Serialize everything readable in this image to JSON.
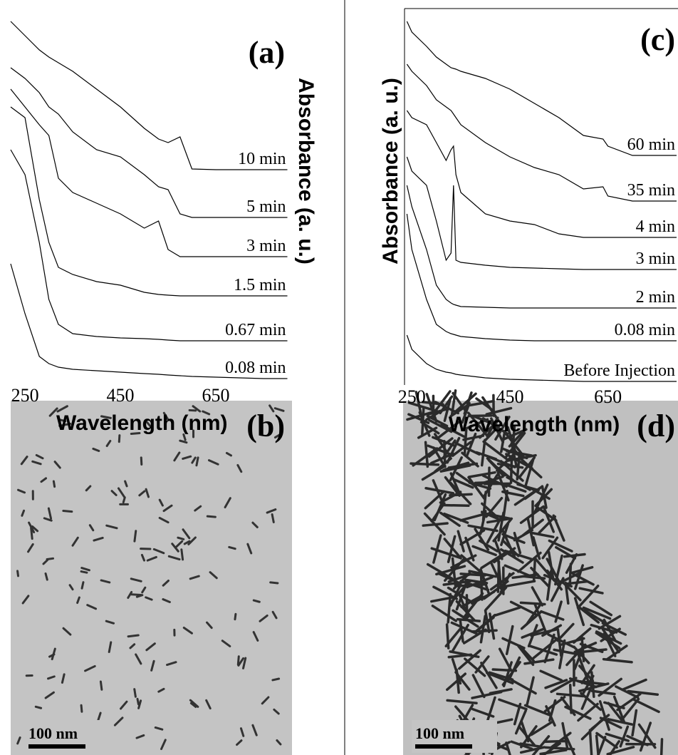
{
  "chart_data": [
    {
      "type": "line",
      "panel_label": "(a)",
      "x_label": "Wavelength (nm)",
      "y_label": "Absorbance (a. u.)",
      "x": [
        220,
        250,
        280,
        300,
        320,
        350,
        400,
        450,
        500,
        530,
        550,
        575,
        600,
        650,
        700,
        750,
        800
      ],
      "xlim": [
        220,
        800
      ],
      "xticks": [
        250,
        450,
        650
      ],
      "ylim": [
        0,
        110
      ],
      "series": [
        {
          "name": "10 min",
          "color": "#000000",
          "values": [
            110,
            106,
            102,
            100,
            98.4,
            96,
            91,
            86,
            80,
            77,
            76,
            77.6,
            68.6,
            68.4,
            68.4,
            68.4,
            68.4
          ]
        },
        {
          "name": "5 min",
          "color": "#000000",
          "values": [
            97,
            94,
            90,
            86,
            84,
            79,
            74,
            72,
            67,
            63.6,
            62.8,
            56,
            55,
            55,
            55,
            55,
            55
          ]
        },
        {
          "name": "3 min",
          "color": "#000000",
          "values": [
            91,
            86,
            81,
            78,
            66,
            62,
            59,
            56,
            52,
            54,
            46,
            44,
            44,
            44,
            44,
            44,
            44
          ]
        },
        {
          "name": "1.5 min",
          "color": "#000000",
          "values": [
            86,
            83,
            60,
            48,
            41,
            39,
            37,
            36,
            34,
            33.4,
            33.2,
            33,
            33,
            33,
            33,
            33,
            33
          ]
        },
        {
          "name": "0.67 min",
          "color": "#000000",
          "values": [
            74,
            67,
            48,
            32,
            25,
            22.4,
            21.6,
            21.2,
            21,
            20.8,
            20.6,
            20.4,
            20.4,
            20.4,
            20.4,
            20.4,
            20.4
          ]
        },
        {
          "name": "0.08 min",
          "color": "#000000",
          "values": [
            42,
            28,
            16,
            14,
            13,
            12.4,
            12,
            11.6,
            11.2,
            11,
            10.8,
            10.6,
            10.4,
            10.2,
            10,
            9.8,
            9.8
          ]
        }
      ]
    },
    {
      "type": "line",
      "panel_label": "(c)",
      "x_label": "Wavelength (nm)",
      "y_label": "Absorbance (a. u.)",
      "x": [
        240,
        250,
        280,
        300,
        320,
        330,
        335,
        340,
        350,
        400,
        450,
        500,
        550,
        600,
        640,
        650,
        700,
        750,
        790
      ],
      "xlim": [
        238,
        790
      ],
      "xticks": [
        250,
        450,
        650
      ],
      "ylim": [
        0,
        108
      ],
      "series": [
        {
          "name": "60 min",
          "color": "#000000",
          "values": [
            106,
            103,
            99,
            96,
            94,
            93,
            92.8,
            92.6,
            92,
            90,
            87,
            83,
            79,
            74,
            73,
            71,
            68.4,
            68.4,
            68.4
          ]
        },
        {
          "name": "35 min",
          "color": "#000000",
          "values": [
            94,
            92,
            88,
            84,
            82,
            81,
            80,
            79,
            77,
            72,
            68,
            65,
            63,
            59,
            59.6,
            57,
            55.6,
            55.6,
            55.6
          ]
        },
        {
          "name": "4 min",
          "color": "#000000",
          "values": [
            81,
            79,
            77,
            72,
            67,
            70,
            71,
            63,
            58,
            52,
            50,
            49,
            46.4,
            45.4,
            45.4,
            45.4,
            45.4,
            45.4,
            45.4
          ]
        },
        {
          "name": "3 min",
          "color": "#000000",
          "values": [
            68,
            64,
            60,
            50,
            39,
            41,
            60,
            39,
            38.4,
            37.6,
            37,
            36.8,
            36.6,
            36.4,
            36.4,
            36.4,
            36.4,
            36.4,
            36.4
          ]
        },
        {
          "name": "2 min",
          "color": "#000000",
          "values": [
            60,
            54,
            42,
            32,
            28,
            27,
            26.6,
            26.4,
            26,
            25.8,
            25.6,
            25.6,
            25.6,
            25.6,
            25.6,
            25.6,
            25.6,
            25.6,
            25.6
          ]
        },
        {
          "name": "0.08 min",
          "color": "#000000",
          "values": [
            52,
            42,
            28,
            21,
            19,
            18.4,
            18.2,
            18,
            17.6,
            17,
            16.6,
            16.4,
            16.4,
            16.4,
            16.4,
            16.4,
            16.4,
            16.4,
            16.4
          ]
        },
        {
          "name": "Before Injection",
          "color": "#000000",
          "values": [
            18,
            14,
            10,
            8.4,
            7.6,
            7.4,
            7.2,
            7,
            6.8,
            6,
            5.6,
            5.4,
            5.2,
            5,
            5,
            5,
            5,
            5,
            5
          ]
        }
      ]
    }
  ],
  "images": [
    {
      "panel_label": "(b)",
      "scale_bar": "100 nm"
    },
    {
      "panel_label": "(d)",
      "scale_bar": "100 nm"
    }
  ]
}
